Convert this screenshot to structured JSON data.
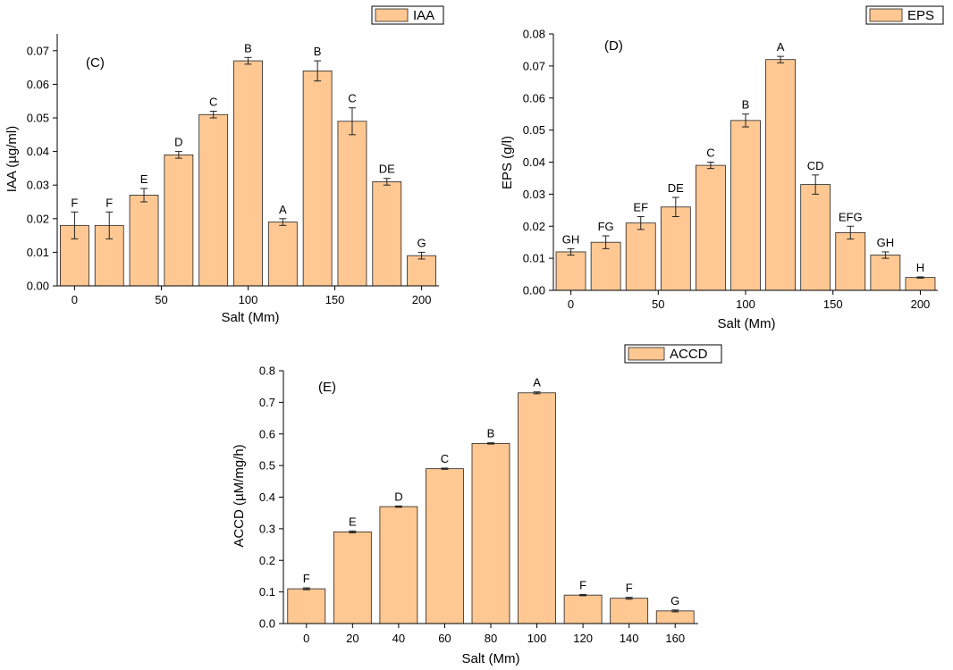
{
  "colors": {
    "bar_fill": "#FFC893",
    "bar_stroke": "#222222",
    "axis": "#000000",
    "background": "#FFFFFF"
  },
  "chart_data": [
    {
      "id": "iaa",
      "type": "bar",
      "panel_label": "(C)",
      "legend_label": "IAA",
      "xlabel": "Salt (Mm)",
      "ylabel": "IAA (µg/ml)",
      "ylim": [
        0,
        0.075
      ],
      "yticks": [
        "0.00",
        "0.01",
        "0.02",
        "0.03",
        "0.04",
        "0.05",
        "0.06",
        "0.07"
      ],
      "xlim": [
        -10,
        210
      ],
      "xticks": [
        "0",
        "50",
        "100",
        "150",
        "200"
      ],
      "x": [
        0,
        20,
        40,
        60,
        80,
        100,
        120,
        140,
        160,
        180,
        200
      ],
      "values": [
        0.018,
        0.018,
        0.027,
        0.039,
        0.051,
        0.067,
        0.019,
        0.064,
        0.049,
        0.031,
        0.009
      ],
      "errors": [
        0.004,
        0.004,
        0.002,
        0.001,
        0.001,
        0.001,
        0.001,
        0.003,
        0.004,
        0.001,
        0.001
      ],
      "letters": [
        "F",
        "F",
        "E",
        "D",
        "C",
        "B",
        "A",
        "B",
        "C",
        "DE",
        "G"
      ]
    },
    {
      "id": "eps",
      "type": "bar",
      "panel_label": "(D)",
      "legend_label": "EPS",
      "xlabel": "Salt (Mm)",
      "ylabel": "EPS (g/l)",
      "ylim": [
        0,
        0.08
      ],
      "yticks": [
        "0.00",
        "0.01",
        "0.02",
        "0.03",
        "0.04",
        "0.05",
        "0.06",
        "0.07",
        "0.08"
      ],
      "xlim": [
        -10,
        210
      ],
      "xticks": [
        "0",
        "50",
        "100",
        "150",
        "200"
      ],
      "x": [
        0,
        20,
        40,
        60,
        80,
        100,
        120,
        140,
        160,
        180,
        200
      ],
      "values": [
        0.012,
        0.015,
        0.021,
        0.026,
        0.039,
        0.053,
        0.072,
        0.033,
        0.018,
        0.011,
        0.004
      ],
      "errors": [
        0.001,
        0.002,
        0.002,
        0.003,
        0.001,
        0.002,
        0.001,
        0.003,
        0.002,
        0.001,
        0.0002
      ],
      "letters": [
        "GH",
        "FG",
        "EF",
        "DE",
        "C",
        "B",
        "A",
        "CD",
        "EFG",
        "GH",
        "H"
      ]
    },
    {
      "id": "accd",
      "type": "bar",
      "panel_label": "(E)",
      "legend_label": "ACCD",
      "xlabel": "Salt (Mm)",
      "ylabel": "ACCD (µM/mg/h)",
      "ylim": [
        0,
        0.8
      ],
      "yticks": [
        "0.0",
        "0.1",
        "0.2",
        "0.3",
        "0.4",
        "0.5",
        "0.6",
        "0.7",
        "0.8"
      ],
      "categories": [
        "0",
        "20",
        "40",
        "60",
        "80",
        "100",
        "120",
        "140",
        "160"
      ],
      "values": [
        0.11,
        0.29,
        0.37,
        0.49,
        0.57,
        0.73,
        0.09,
        0.08,
        0.04
      ],
      "errors": [
        0.003,
        0.003,
        0.002,
        0.002,
        0.002,
        0.003,
        0.002,
        0.003,
        0.003
      ],
      "letters": [
        "F",
        "E",
        "D",
        "C",
        "B",
        "A",
        "F",
        "F",
        "G"
      ]
    }
  ]
}
